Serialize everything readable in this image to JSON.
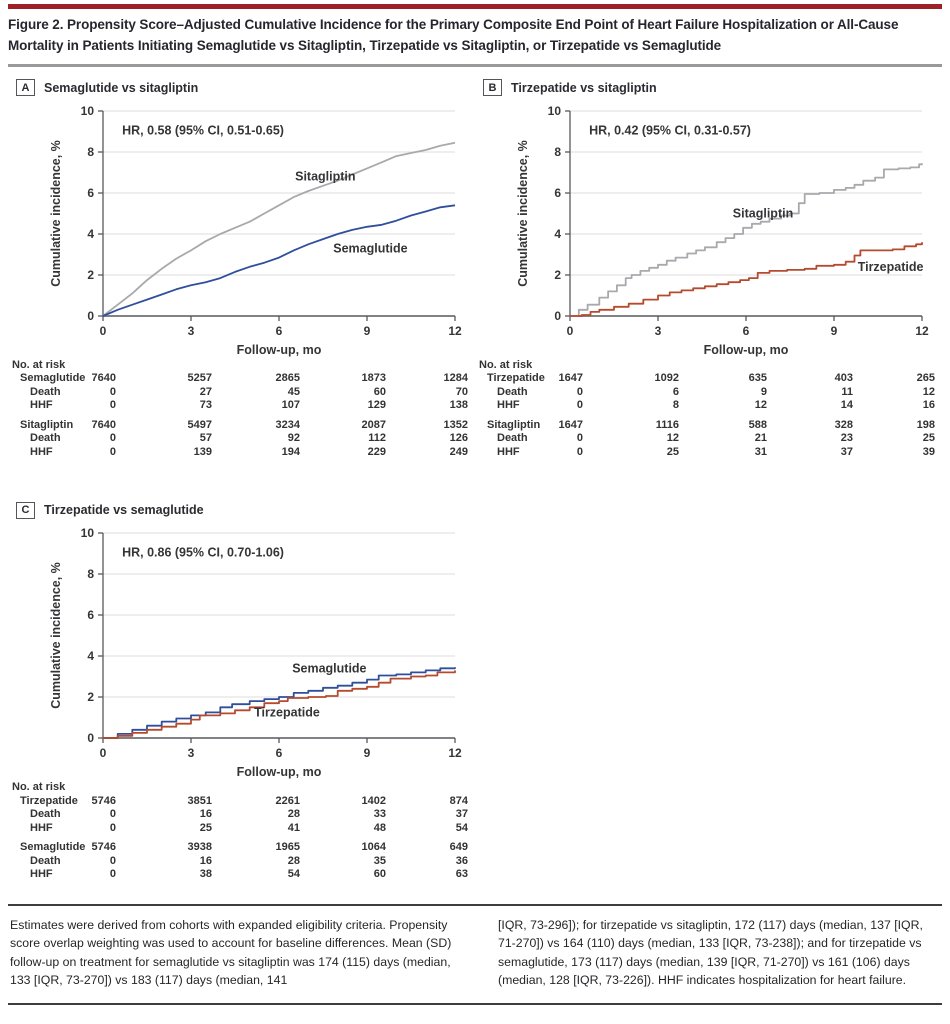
{
  "page": {
    "title": "Figure 2. Propensity Score–Adjusted Cumulative Incidence for the Primary Composite End Point of Heart Failure Hospitalization or All-Cause Mortality in Patients Initiating Semaglutide vs Sitagliptin, Tirzepatide vs Sitagliptin, or Tirzepatide vs Semaglutide"
  },
  "colors": {
    "blue": "#2f4f9c",
    "red": "#b64a2e",
    "gray": "#a7a9ac",
    "grid": "#e4e4e4",
    "axis": "#58595b",
    "xaxis_line": "#808285",
    "chart_text": "#353538",
    "accent_rule": "#9d2127"
  },
  "risk_header_label": "No. at risk",
  "chart_data": [
    {
      "type": "line",
      "panel_letter": "A",
      "title": "Semaglutide vs sitagliptin",
      "hr_label": "HR, 0.58 (95% CI, 0.51-0.65)",
      "hr_pos": [
        0.65,
        8.85
      ],
      "xlabel": "Follow-up, mo",
      "ylabel": "Cumulative incidence, %",
      "xlim": [
        0,
        12
      ],
      "ylim": [
        0,
        10
      ],
      "xticks": [
        0,
        3,
        6,
        9,
        12
      ],
      "yticks": [
        0,
        2,
        4,
        6,
        8,
        10
      ],
      "step": false,
      "series": [
        {
          "name": "Sitagliptin",
          "color_key": "gray",
          "label_pos": [
            6.55,
            6.6
          ],
          "label_anchor": "start",
          "points": [
            [
              0,
              0
            ],
            [
              0.5,
              0.55
            ],
            [
              1,
              1.1
            ],
            [
              1.5,
              1.75
            ],
            [
              2,
              2.3
            ],
            [
              2.5,
              2.8
            ],
            [
              3,
              3.2
            ],
            [
              3.5,
              3.65
            ],
            [
              4,
              4.0
            ],
            [
              4.5,
              4.3
            ],
            [
              5,
              4.6
            ],
            [
              5.5,
              5.0
            ],
            [
              6,
              5.4
            ],
            [
              6.5,
              5.8
            ],
            [
              7,
              6.1
            ],
            [
              7.5,
              6.35
            ],
            [
              8,
              6.6
            ],
            [
              8.5,
              6.9
            ],
            [
              9,
              7.2
            ],
            [
              9.5,
              7.5
            ],
            [
              10,
              7.8
            ],
            [
              10.5,
              7.95
            ],
            [
              11,
              8.1
            ],
            [
              11.5,
              8.3
            ],
            [
              12,
              8.45
            ]
          ]
        },
        {
          "name": "Semaglutide",
          "color_key": "blue",
          "label_pos": [
            7.85,
            3.1
          ],
          "label_anchor": "start",
          "points": [
            [
              0,
              0
            ],
            [
              0.5,
              0.3
            ],
            [
              1,
              0.55
            ],
            [
              1.5,
              0.8
            ],
            [
              2,
              1.05
            ],
            [
              2.5,
              1.3
            ],
            [
              3,
              1.5
            ],
            [
              3.5,
              1.65
            ],
            [
              4,
              1.85
            ],
            [
              4.5,
              2.15
            ],
            [
              5,
              2.4
            ],
            [
              5.5,
              2.6
            ],
            [
              6,
              2.85
            ],
            [
              6.5,
              3.2
            ],
            [
              7,
              3.5
            ],
            [
              7.5,
              3.75
            ],
            [
              8,
              4.0
            ],
            [
              8.5,
              4.2
            ],
            [
              9,
              4.35
            ],
            [
              9.5,
              4.45
            ],
            [
              10,
              4.65
            ],
            [
              10.5,
              4.9
            ],
            [
              11,
              5.1
            ],
            [
              11.5,
              5.3
            ],
            [
              12,
              5.4
            ]
          ]
        }
      ],
      "risk_table": {
        "groups": [
          {
            "name": "Semaglutide",
            "at_risk": [
              "7640",
              "5257",
              "2865",
              "1873",
              "1284"
            ],
            "subrows": [
              {
                "label": "Death",
                "values": [
                  "0",
                  "27",
                  "45",
                  "60",
                  "70"
                ]
              },
              {
                "label": "HHF",
                "values": [
                  "0",
                  "73",
                  "107",
                  "129",
                  "138"
                ]
              }
            ]
          },
          {
            "name": "Sitagliptin",
            "at_risk": [
              "7640",
              "5497",
              "3234",
              "2087",
              "1352"
            ],
            "subrows": [
              {
                "label": "Death",
                "values": [
                  "0",
                  "57",
                  "92",
                  "112",
                  "126"
                ]
              },
              {
                "label": "HHF",
                "values": [
                  "0",
                  "139",
                  "194",
                  "229",
                  "249"
                ]
              }
            ]
          }
        ]
      }
    },
    {
      "type": "line",
      "panel_letter": "B",
      "title": "Tirzepatide vs sitagliptin",
      "hr_label": "HR, 0.42 (95% CI, 0.31-0.57)",
      "hr_pos": [
        0.65,
        8.85
      ],
      "xlabel": "Follow-up, mo",
      "ylabel": "Cumulative incidence, %",
      "xlim": [
        0,
        12
      ],
      "ylim": [
        0,
        10
      ],
      "xticks": [
        0,
        3,
        6,
        9,
        12
      ],
      "yticks": [
        0,
        2,
        4,
        6,
        8,
        10
      ],
      "step": true,
      "series": [
        {
          "name": "Sitagliptin",
          "color_key": "gray",
          "label_pos": [
            5.55,
            4.8
          ],
          "label_anchor": "start",
          "points": [
            [
              0,
              0
            ],
            [
              0.3,
              0.3
            ],
            [
              0.6,
              0.55
            ],
            [
              1,
              0.9
            ],
            [
              1.3,
              1.2
            ],
            [
              1.6,
              1.5
            ],
            [
              1.9,
              1.85
            ],
            [
              2.1,
              2.0
            ],
            [
              2.4,
              2.2
            ],
            [
              2.7,
              2.35
            ],
            [
              3,
              2.5
            ],
            [
              3.3,
              2.7
            ],
            [
              3.6,
              2.85
            ],
            [
              4,
              3.05
            ],
            [
              4.3,
              3.2
            ],
            [
              4.6,
              3.35
            ],
            [
              5,
              3.6
            ],
            [
              5.3,
              3.8
            ],
            [
              5.6,
              4.0
            ],
            [
              5.9,
              4.3
            ],
            [
              6.2,
              4.5
            ],
            [
              6.5,
              4.6
            ],
            [
              6.8,
              4.75
            ],
            [
              7.2,
              4.9
            ],
            [
              7.5,
              5.0
            ],
            [
              7.8,
              5.5
            ],
            [
              8,
              5.95
            ],
            [
              8.5,
              6.0
            ],
            [
              9,
              6.15
            ],
            [
              9.4,
              6.25
            ],
            [
              9.7,
              6.4
            ],
            [
              10,
              6.6
            ],
            [
              10.4,
              6.75
            ],
            [
              10.7,
              7.15
            ],
            [
              11.2,
              7.2
            ],
            [
              11.6,
              7.25
            ],
            [
              11.9,
              7.4
            ],
            [
              12,
              7.45
            ]
          ]
        },
        {
          "name": "Tirzepatide",
          "color_key": "red",
          "label_pos": [
            12.05,
            2.2
          ],
          "label_anchor": "end",
          "points": [
            [
              0,
              0
            ],
            [
              0.4,
              0.05
            ],
            [
              0.7,
              0.2
            ],
            [
              1,
              0.3
            ],
            [
              1.5,
              0.45
            ],
            [
              2,
              0.6
            ],
            [
              2.5,
              0.8
            ],
            [
              3,
              1.0
            ],
            [
              3.4,
              1.15
            ],
            [
              3.8,
              1.25
            ],
            [
              4.2,
              1.35
            ],
            [
              4.6,
              1.45
            ],
            [
              5,
              1.55
            ],
            [
              5.4,
              1.65
            ],
            [
              5.8,
              1.75
            ],
            [
              6.1,
              1.85
            ],
            [
              6.4,
              2.1
            ],
            [
              6.8,
              2.2
            ],
            [
              7.4,
              2.25
            ],
            [
              8,
              2.3
            ],
            [
              8.4,
              2.45
            ],
            [
              9,
              2.5
            ],
            [
              9.4,
              2.65
            ],
            [
              9.7,
              2.95
            ],
            [
              9.9,
              3.2
            ],
            [
              10.5,
              3.2
            ],
            [
              11,
              3.25
            ],
            [
              11.4,
              3.4
            ],
            [
              11.8,
              3.5
            ],
            [
              12,
              3.6
            ]
          ]
        }
      ],
      "risk_table": {
        "groups": [
          {
            "name": "Tirzepatide",
            "at_risk": [
              "1647",
              "1092",
              "635",
              "403",
              "265"
            ],
            "subrows": [
              {
                "label": "Death",
                "values": [
                  "0",
                  "6",
                  "9",
                  "11",
                  "12"
                ]
              },
              {
                "label": "HHF",
                "values": [
                  "0",
                  "8",
                  "12",
                  "14",
                  "16"
                ]
              }
            ]
          },
          {
            "name": "Sitagliptin",
            "at_risk": [
              "1647",
              "1116",
              "588",
              "328",
              "198"
            ],
            "subrows": [
              {
                "label": "Death",
                "values": [
                  "0",
                  "12",
                  "21",
                  "23",
                  "25"
                ]
              },
              {
                "label": "HHF",
                "values": [
                  "0",
                  "25",
                  "31",
                  "37",
                  "39"
                ]
              }
            ]
          }
        ]
      }
    },
    {
      "type": "line",
      "panel_letter": "C",
      "title": "Tirzepatide vs semaglutide",
      "hr_label": "HR, 0.86 (95% CI, 0.70-1.06)",
      "hr_pos": [
        0.65,
        8.85
      ],
      "xlabel": "Follow-up, mo",
      "ylabel": "Cumulative incidence, %",
      "xlim": [
        0,
        12
      ],
      "ylim": [
        0,
        10
      ],
      "xticks": [
        0,
        3,
        6,
        9,
        12
      ],
      "yticks": [
        0,
        2,
        4,
        6,
        8,
        10
      ],
      "step": true,
      "series": [
        {
          "name": "Semaglutide",
          "color_key": "blue",
          "label_pos": [
            6.45,
            3.2
          ],
          "label_anchor": "start",
          "points": [
            [
              0,
              0
            ],
            [
              0.5,
              0.2
            ],
            [
              1,
              0.4
            ],
            [
              1.5,
              0.6
            ],
            [
              2,
              0.8
            ],
            [
              2.5,
              0.95
            ],
            [
              3,
              1.1
            ],
            [
              3.5,
              1.25
            ],
            [
              4,
              1.5
            ],
            [
              4.4,
              1.65
            ],
            [
              5,
              1.8
            ],
            [
              5.5,
              1.9
            ],
            [
              6,
              2.0
            ],
            [
              6.5,
              2.2
            ],
            [
              7,
              2.3
            ],
            [
              7.5,
              2.45
            ],
            [
              8,
              2.55
            ],
            [
              8.5,
              2.7
            ],
            [
              9,
              2.85
            ],
            [
              9.4,
              3.05
            ],
            [
              10,
              3.1
            ],
            [
              10.5,
              3.2
            ],
            [
              11,
              3.3
            ],
            [
              11.5,
              3.4
            ],
            [
              12,
              3.45
            ]
          ]
        },
        {
          "name": "Tirzepatide",
          "color_key": "red",
          "label_pos": [
            5.15,
            1.05
          ],
          "label_anchor": "start",
          "points": [
            [
              0,
              0
            ],
            [
              0.5,
              0.1
            ],
            [
              1,
              0.25
            ],
            [
              1.5,
              0.4
            ],
            [
              2,
              0.55
            ],
            [
              2.5,
              0.7
            ],
            [
              3,
              0.9
            ],
            [
              3.3,
              1.1
            ],
            [
              4,
              1.2
            ],
            [
              4.5,
              1.35
            ],
            [
              5,
              1.5
            ],
            [
              5.5,
              1.7
            ],
            [
              6,
              1.8
            ],
            [
              6.3,
              1.95
            ],
            [
              7,
              2.0
            ],
            [
              7.6,
              2.05
            ],
            [
              8,
              2.3
            ],
            [
              8.5,
              2.4
            ],
            [
              9,
              2.5
            ],
            [
              9.4,
              2.7
            ],
            [
              9.8,
              2.9
            ],
            [
              10.5,
              3.0
            ],
            [
              11,
              3.05
            ],
            [
              11.4,
              3.2
            ],
            [
              12,
              3.3
            ]
          ]
        }
      ],
      "risk_table": {
        "groups": [
          {
            "name": "Tirzepatide",
            "at_risk": [
              "5746",
              "3851",
              "2261",
              "1402",
              "874"
            ],
            "subrows": [
              {
                "label": "Death",
                "values": [
                  "0",
                  "16",
                  "28",
                  "33",
                  "37"
                ]
              },
              {
                "label": "HHF",
                "values": [
                  "0",
                  "25",
                  "41",
                  "48",
                  "54"
                ]
              }
            ]
          },
          {
            "name": "Semaglutide",
            "at_risk": [
              "5746",
              "3938",
              "1965",
              "1064",
              "649"
            ],
            "subrows": [
              {
                "label": "Death",
                "values": [
                  "0",
                  "16",
                  "28",
                  "35",
                  "36"
                ]
              },
              {
                "label": "HHF",
                "values": [
                  "0",
                  "38",
                  "54",
                  "60",
                  "63"
                ]
              }
            ]
          }
        ]
      }
    }
  ],
  "caption": {
    "left": "Estimates were derived from cohorts with expanded eligibility criteria. Propensity score overlap weighting was used to account for baseline differences. Mean (SD) follow-up on treatment for semaglutide vs sitagliptin was 174 (115) days (median, 133 [IQR, 73-270]) vs 183 (117) days (median, 141",
    "right": "[IQR, 73-296]); for tirzepatide vs sitagliptin, 172 (117) days (median, 137 [IQR, 71-270]) vs 164 (110) days (median, 133 [IQR, 73-238]); and for tirzepatide vs semaglutide, 173 (117) days (median, 139 [IQR, 71-270]) vs 161 (106) days (median, 128 [IQR, 73-226]). HHF indicates hospitalization for heart failure."
  }
}
